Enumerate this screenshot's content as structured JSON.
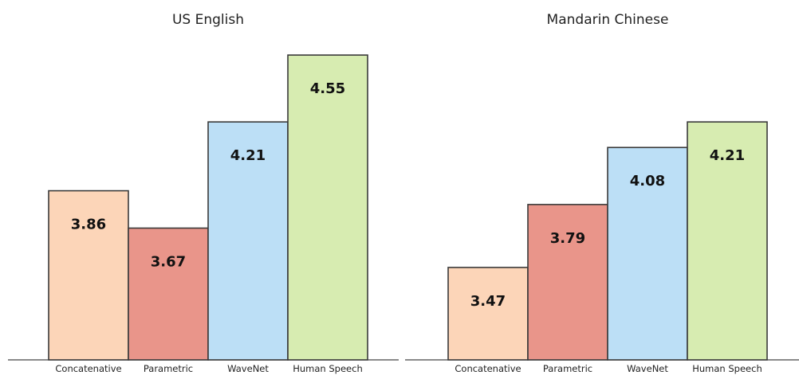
{
  "chart_data": [
    {
      "type": "bar",
      "title": "US English",
      "categories": [
        "Concatenative",
        "Parametric",
        "WaveNet",
        "Human Speech"
      ],
      "values": [
        3.86,
        3.67,
        4.21,
        4.55
      ],
      "value_labels": [
        "3.86",
        "3.67",
        "4.21",
        "4.55"
      ],
      "colors": [
        "#fcd5b8",
        "#e9958a",
        "#bcdff6",
        "#d7ecb1"
      ],
      "xlabel": "",
      "ylabel": "",
      "ylim": [
        3.0,
        4.6
      ],
      "grid": false,
      "legend": "none"
    },
    {
      "type": "bar",
      "title": "Mandarin Chinese",
      "categories": [
        "Concatenative",
        "Parametric",
        "WaveNet",
        "Human Speech"
      ],
      "values": [
        3.47,
        3.79,
        4.08,
        4.21
      ],
      "value_labels": [
        "3.47",
        "3.79",
        "4.08",
        "4.21"
      ],
      "colors": [
        "#fcd5b8",
        "#e9958a",
        "#bcdff6",
        "#d7ecb1"
      ],
      "xlabel": "",
      "ylabel": "",
      "ylim": [
        3.0,
        4.6
      ],
      "grid": false,
      "legend": "none"
    }
  ]
}
